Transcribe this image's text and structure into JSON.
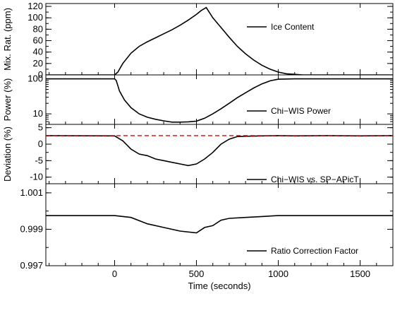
{
  "chart_data": [
    {
      "type": "line",
      "ylabel": "Mix. Rat. (ppm)",
      "xlim": [
        -420,
        1700
      ],
      "ylim": [
        0,
        125
      ],
      "yticks": [
        0,
        20,
        40,
        60,
        80,
        100,
        120
      ],
      "series": [
        {
          "name": "Ice Content",
          "color": "#000000",
          "x": [
            -420,
            0,
            20,
            50,
            100,
            150,
            200,
            250,
            300,
            350,
            400,
            450,
            500,
            530,
            560,
            600,
            650,
            700,
            750,
            800,
            850,
            900,
            950,
            1000,
            1050,
            1100,
            1150,
            1200,
            1300,
            1500,
            1700
          ],
          "y": [
            0,
            0,
            5,
            20,
            38,
            50,
            58,
            65,
            72,
            79,
            87,
            96,
            106,
            113,
            118,
            100,
            83,
            66,
            50,
            37,
            26,
            17,
            10,
            5,
            2,
            1,
            0,
            0,
            0,
            0,
            0
          ]
        }
      ]
    },
    {
      "type": "line",
      "ylabel": "Power (%)",
      "yscale": "log",
      "xlim": [
        -420,
        1700
      ],
      "ylim": [
        5,
        130
      ],
      "yticks": [
        10,
        100
      ],
      "series": [
        {
          "name": "Chi−WIS Power",
          "color": "#000000",
          "x": [
            -420,
            0,
            10,
            30,
            60,
            100,
            150,
            200,
            250,
            300,
            350,
            400,
            450,
            500,
            550,
            600,
            650,
            700,
            750,
            800,
            850,
            900,
            950,
            1000,
            1100,
            1300,
            1500,
            1700
          ],
          "y": [
            100,
            100,
            90,
            45,
            25,
            15,
            10,
            8,
            7,
            6.3,
            5.8,
            5.8,
            5.9,
            6.2,
            7.5,
            10,
            14,
            20,
            29,
            40,
            55,
            72,
            88,
            98,
            100,
            100,
            100,
            100
          ]
        }
      ]
    },
    {
      "type": "line",
      "ylabel": "Deviation (%)",
      "xlim": [
        -420,
        1700
      ],
      "ylim": [
        -12,
        6
      ],
      "yticks": [
        -10,
        -5,
        0,
        5
      ],
      "series": [
        {
          "name": "Chi−WIS vs. SP−APicT",
          "color": "#000000",
          "x": [
            -420,
            0,
            50,
            100,
            150,
            200,
            250,
            300,
            350,
            400,
            450,
            500,
            550,
            600,
            650,
            700,
            750,
            800,
            900,
            1000,
            1100,
            1300,
            1500,
            1700
          ],
          "y": [
            2.6,
            2.5,
            1.0,
            -1.5,
            -3.0,
            -3.5,
            -4.5,
            -5.0,
            -5.5,
            -6.0,
            -6.5,
            -6.0,
            -4.5,
            -2.5,
            0.0,
            1.5,
            2.3,
            2.4,
            2.5,
            2.6,
            2.5,
            2.6,
            2.5,
            2.6
          ]
        },
        {
          "name": "reference",
          "color": "#e00000",
          "x": [
            -420,
            1700
          ],
          "y": [
            2.6,
            2.6
          ]
        }
      ]
    },
    {
      "type": "line",
      "ylabel": "",
      "xlabel": "Time (seconds)",
      "xlim": [
        -420,
        1700
      ],
      "ylim": [
        0.997,
        1.0015
      ],
      "yticks": [
        0.997,
        0.999,
        1.001
      ],
      "xticks": [
        0,
        500,
        1000,
        1500
      ],
      "series": [
        {
          "name": "Ratio Correction Factor",
          "color": "#000000",
          "x": [
            -420,
            -300,
            0,
            100,
            200,
            300,
            400,
            500,
            550,
            600,
            650,
            700,
            800,
            900,
            1000,
            1100,
            1300,
            1500,
            1700
          ],
          "y": [
            0.99975,
            0.99975,
            0.99975,
            0.99965,
            0.9993,
            0.9991,
            0.9989,
            0.9988,
            0.9991,
            0.9992,
            0.9995,
            0.9996,
            0.99965,
            0.9997,
            0.99975,
            0.99975,
            0.99975,
            0.99975,
            0.99975
          ]
        }
      ]
    }
  ]
}
